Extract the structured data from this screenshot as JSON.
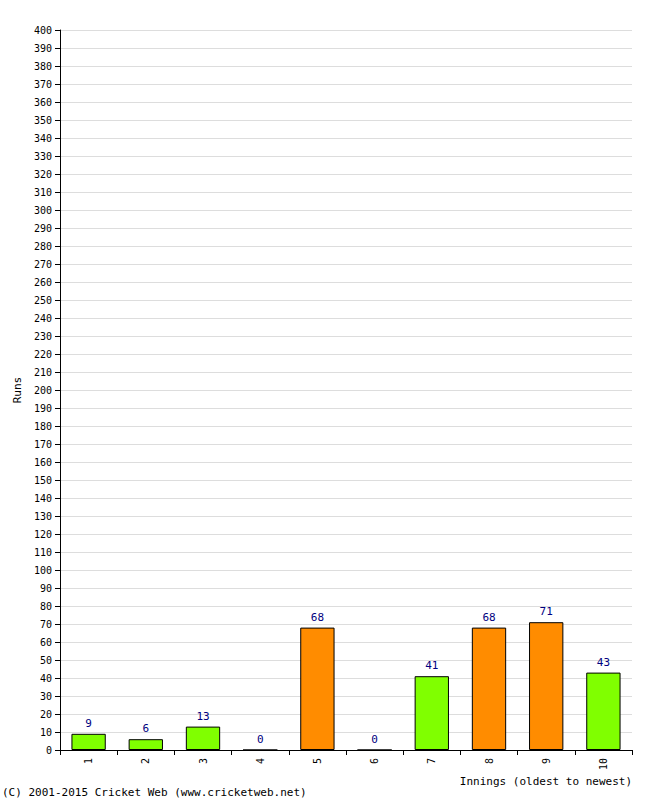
{
  "chart_data": {
    "type": "bar",
    "xlabel": "Innings (oldest to newest)",
    "ylabel": "Runs",
    "annotations": [
      "(C) 2001-2015 Cricket Web (www.cricketweb.net)"
    ],
    "categories": [
      "1",
      "2",
      "3",
      "4",
      "5",
      "6",
      "7",
      "8",
      "9",
      "10"
    ],
    "values": [
      9,
      6,
      13,
      0,
      68,
      0,
      41,
      68,
      71,
      43
    ],
    "colors": [
      "#80ff00",
      "#80ff00",
      "#80ff00",
      "#80ff00",
      "#ff8c00",
      "#80ff00",
      "#80ff00",
      "#ff8c00",
      "#ff8c00",
      "#80ff00"
    ],
    "ylim": [
      0,
      400
    ],
    "yticks": [
      0,
      10,
      20,
      30,
      40,
      50,
      60,
      70,
      80,
      90,
      100,
      110,
      120,
      130,
      140,
      150,
      160,
      170,
      180,
      190,
      200,
      210,
      220,
      230,
      240,
      250,
      260,
      270,
      280,
      290,
      300,
      310,
      320,
      330,
      340,
      350,
      360,
      370,
      380,
      390,
      400
    ],
    "grid": true,
    "data_labels": true
  }
}
